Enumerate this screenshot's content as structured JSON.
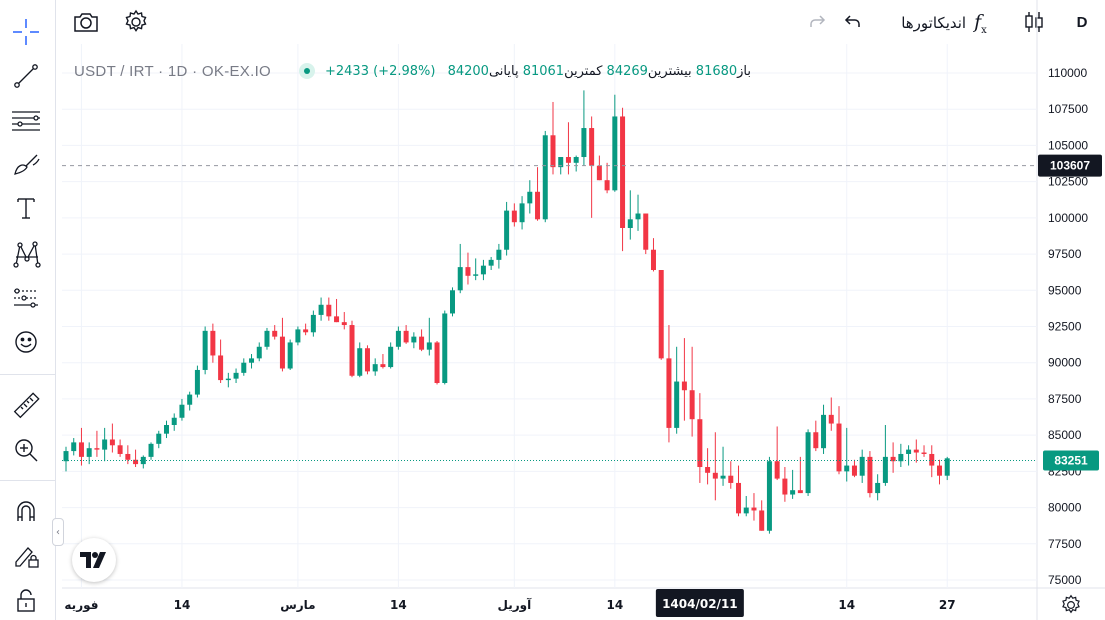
{
  "toolbar": {
    "interval": "D",
    "indicators_label": "اندیکاتورها",
    "fx_label": "f",
    "fx_sub": "x"
  },
  "legend": {
    "symbol": "USDT / IRT · 1D · OK-EX.IO",
    "open_label": "باز",
    "open": "81680",
    "high_label": "بیشترین",
    "high": "84269",
    "low_label": "کمترین",
    "low": "81061",
    "close_label": "پایانی",
    "close": "84200",
    "change": "+2433 (+2.98%)"
  },
  "colors": {
    "up": "#089981",
    "down": "#f23645",
    "grid": "#f0f3fa",
    "axis_border": "#e0e3eb",
    "last_price_bg": "#089981",
    "crosshair_label_bg": "#131722",
    "icon": "#131722"
  },
  "left_tools": [
    "crosshair-icon",
    "trendline-icon",
    "horizontal-lines-icon",
    "brush-icon",
    "text-icon",
    "pattern-icon",
    "forecast-icon",
    "emoji-icon",
    "ruler-icon",
    "zoom-icon",
    "magnet-icon",
    "lock-draw-icon",
    "unlock-icon"
  ],
  "chart_data": {
    "type": "candlestick",
    "y_axis": {
      "ticks": [
        "110000",
        "107500",
        "105000",
        "102500",
        "100000",
        "97500",
        "95000",
        "92500",
        "90000",
        "87500",
        "85000",
        "82500",
        "80000",
        "77500",
        "75000"
      ],
      "ylim": [
        74500,
        111500
      ]
    },
    "x_axis": {
      "ticks": [
        {
          "label": "فوریه",
          "index": 2
        },
        {
          "label": "14",
          "index": 15
        },
        {
          "label": "مارس",
          "index": 30
        },
        {
          "label": "14",
          "index": 43
        },
        {
          "label": "آوریل",
          "index": 58
        },
        {
          "label": "14",
          "index": 71
        },
        {
          "label": "14",
          "index": 101
        },
        {
          "label": "27",
          "index": 114
        }
      ]
    },
    "last_price": "83251",
    "crosshair_price": "103607",
    "crosshair_date": "1404/02/11",
    "crosshair_index": 82,
    "candles": [
      [
        83200,
        84200,
        82500,
        83900
      ],
      [
        83900,
        84800,
        83600,
        84500
      ],
      [
        84500,
        85500,
        82900,
        83500
      ],
      [
        83500,
        84500,
        83000,
        84100
      ],
      [
        84100,
        85300,
        83500,
        84000
      ],
      [
        84000,
        85500,
        83200,
        84700
      ],
      [
        84700,
        85800,
        83800,
        84300
      ],
      [
        84300,
        84700,
        83500,
        83700
      ],
      [
        83700,
        84300,
        83000,
        83300
      ],
      [
        83300,
        84000,
        82800,
        83000
      ],
      [
        83000,
        83600,
        82700,
        83500
      ],
      [
        83500,
        84500,
        83300,
        84400
      ],
      [
        84400,
        85300,
        84100,
        85100
      ],
      [
        85100,
        86000,
        84800,
        85700
      ],
      [
        85700,
        86500,
        85300,
        86200
      ],
      [
        86200,
        87500,
        86000,
        87100
      ],
      [
        87100,
        88000,
        86700,
        87800
      ],
      [
        87800,
        89800,
        87600,
        89500
      ],
      [
        89500,
        92500,
        89200,
        92200
      ],
      [
        92200,
        92700,
        90000,
        90500
      ],
      [
        90500,
        91600,
        88600,
        88800
      ],
      [
        88800,
        89300,
        88300,
        88900
      ],
      [
        88900,
        89600,
        88600,
        89300
      ],
      [
        89300,
        90300,
        89100,
        90000
      ],
      [
        90000,
        90600,
        89600,
        90300
      ],
      [
        90300,
        91400,
        90100,
        91100
      ],
      [
        91100,
        92400,
        90900,
        92200
      ],
      [
        92200,
        92600,
        91600,
        91800
      ],
      [
        91800,
        93100,
        89400,
        89600
      ],
      [
        89600,
        91600,
        89500,
        91400
      ],
      [
        91400,
        92500,
        91200,
        92300
      ],
      [
        92300,
        92700,
        91900,
        92100
      ],
      [
        92100,
        93600,
        91800,
        93300
      ],
      [
        93300,
        94500,
        92900,
        94000
      ],
      [
        94000,
        94500,
        92900,
        93200
      ],
      [
        93200,
        94400,
        92800,
        92800
      ],
      [
        92800,
        93500,
        92300,
        92600
      ],
      [
        92600,
        92900,
        89000,
        89100
      ],
      [
        89100,
        91400,
        89000,
        91000
      ],
      [
        91000,
        91200,
        89200,
        89400
      ],
      [
        89400,
        90300,
        89100,
        89900
      ],
      [
        89900,
        90600,
        89600,
        89700
      ],
      [
        89700,
        91400,
        89600,
        91100
      ],
      [
        91100,
        92500,
        90900,
        92200
      ],
      [
        92200,
        92600,
        91300,
        91400
      ],
      [
        91400,
        92100,
        91000,
        91800
      ],
      [
        91800,
        92300,
        90800,
        90900
      ],
      [
        90900,
        93100,
        90500,
        91400
      ],
      [
        91400,
        91500,
        88500,
        88600
      ],
      [
        88600,
        93600,
        88500,
        93400
      ],
      [
        93400,
        95200,
        93200,
        95000
      ],
      [
        95000,
        98200,
        94800,
        96600
      ],
      [
        96600,
        97600,
        95400,
        96000
      ],
      [
        96000,
        97200,
        95700,
        96100
      ],
      [
        96100,
        97100,
        95700,
        96700
      ],
      [
        96700,
        97300,
        96400,
        97100
      ],
      [
        97100,
        98200,
        96500,
        97800
      ],
      [
        97800,
        101100,
        97400,
        100500
      ],
      [
        100500,
        101000,
        99400,
        99700
      ],
      [
        99700,
        101500,
        99200,
        101000
      ],
      [
        101000,
        102600,
        100300,
        101800
      ],
      [
        101800,
        103500,
        99800,
        99900
      ],
      [
        99900,
        106000,
        99700,
        105700
      ],
      [
        105700,
        108000,
        103000,
        103500
      ],
      [
        103500,
        104000,
        103000,
        104200
      ],
      [
        104200,
        106600,
        103000,
        103800
      ],
      [
        103800,
        104300,
        103200,
        104200
      ],
      [
        104200,
        108800,
        103600,
        106200
      ],
      [
        106200,
        107000,
        100000,
        103600
      ],
      [
        103600,
        104300,
        102600,
        102600
      ],
      [
        102600,
        103800,
        101700,
        101900
      ],
      [
        101900,
        108500,
        101800,
        107000
      ],
      [
        107000,
        107600,
        97700,
        99300
      ],
      [
        99300,
        101900,
        98500,
        99900
      ],
      [
        99900,
        101600,
        99100,
        100300
      ],
      [
        100300,
        100300,
        97500,
        97800
      ],
      [
        97800,
        98600,
        96300,
        96400
      ],
      [
        96400,
        96400,
        90200,
        90300
      ],
      [
        90300,
        92600,
        84500,
        85500
      ],
      [
        85500,
        91100,
        85100,
        88700
      ],
      [
        88700,
        91700,
        86000,
        88100
      ],
      [
        88100,
        91100,
        84900,
        86100
      ],
      [
        86100,
        87900,
        81700,
        82800
      ],
      [
        82800,
        84100,
        81600,
        82400
      ],
      [
        82400,
        85200,
        80500,
        82000
      ],
      [
        82000,
        84200,
        81500,
        82200
      ],
      [
        82200,
        83200,
        81300,
        81700
      ],
      [
        81700,
        82900,
        79400,
        79600
      ],
      [
        79600,
        80800,
        79400,
        80000
      ],
      [
        80000,
        81000,
        79100,
        79800
      ],
      [
        79800,
        80500,
        78400,
        78400
      ],
      [
        78400,
        83500,
        78200,
        83200
      ],
      [
        83200,
        85600,
        81900,
        82000
      ],
      [
        82000,
        82800,
        80400,
        80900
      ],
      [
        80900,
        82600,
        80600,
        81200
      ],
      [
        81200,
        83500,
        81000,
        81000
      ],
      [
        81000,
        85400,
        80800,
        85200
      ],
      [
        85200,
        86000,
        83900,
        84100
      ],
      [
        84100,
        87100,
        83700,
        86400
      ],
      [
        86400,
        87600,
        85300,
        85800
      ],
      [
        85800,
        87000,
        82300,
        82500
      ],
      [
        82500,
        85500,
        81800,
        82900
      ],
      [
        82900,
        83300,
        82100,
        82200
      ],
      [
        82200,
        84000,
        81700,
        83500
      ],
      [
        83500,
        83900,
        80700,
        81000
      ],
      [
        81000,
        82300,
        80500,
        81700
      ],
      [
        81700,
        85700,
        81500,
        83500
      ],
      [
        83500,
        84500,
        82400,
        83200
      ],
      [
        83200,
        84400,
        82800,
        83700
      ],
      [
        83700,
        84300,
        82900,
        84000
      ],
      [
        84000,
        84700,
        83100,
        83800
      ],
      [
        83800,
        84300,
        83500,
        83700
      ],
      [
        83700,
        84300,
        82100,
        82900
      ],
      [
        82900,
        83300,
        81600,
        82200
      ],
      [
        82200,
        83500,
        81900,
        83400
      ]
    ]
  }
}
